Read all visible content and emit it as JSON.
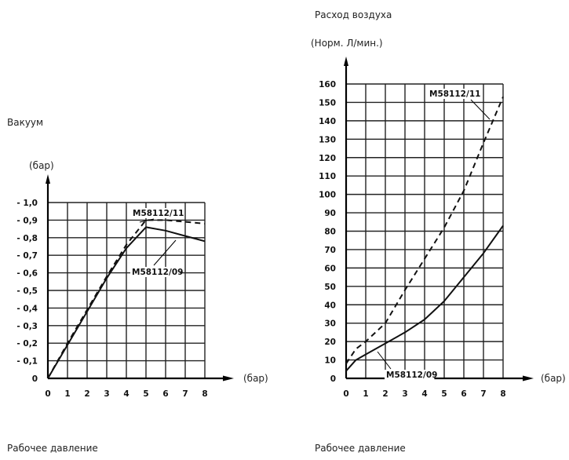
{
  "chart_data": [
    {
      "type": "line",
      "ylabel": "Вакуум",
      "yunit": "(бар)",
      "xlabel": "Рабочее давление",
      "xunit": "(бар)",
      "xlim": [
        0,
        8
      ],
      "ylim": [
        0,
        1.0
      ],
      "grid": true,
      "x_ticks": [
        "0",
        "1",
        "2",
        "3",
        "4",
        "5",
        "6",
        "7",
        "8"
      ],
      "y_ticks": [
        "0",
        "- 0,1",
        "- 0,2",
        "- 0,3",
        "- 0,4",
        "- 0,5",
        "- 0,6",
        "- 0,7",
        "- 0,8",
        "- 0,9",
        "- 1,0"
      ],
      "series": [
        {
          "name": "M58112/11",
          "style": "dashed",
          "color": "#111111",
          "x": [
            0,
            1,
            2,
            3,
            4,
            5,
            6,
            7,
            8
          ],
          "y": [
            0,
            0.2,
            0.39,
            0.58,
            0.76,
            0.9,
            0.9,
            0.89,
            0.88
          ]
        },
        {
          "name": "M58112/09",
          "style": "solid",
          "color": "#111111",
          "x": [
            0,
            1,
            2,
            3,
            4,
            5,
            6,
            7,
            8
          ],
          "y": [
            0,
            0.19,
            0.38,
            0.57,
            0.74,
            0.86,
            0.84,
            0.81,
            0.78
          ]
        }
      ]
    },
    {
      "type": "line",
      "title": "Расход воздуха",
      "ylabel": "(Норм. Л/мин.)",
      "xlabel": "Рабочее давление",
      "xunit": "(бар)",
      "xlim": [
        0,
        8
      ],
      "ylim": [
        0,
        160
      ],
      "grid": true,
      "x_ticks": [
        "0",
        "1",
        "2",
        "3",
        "4",
        "5",
        "6",
        "7",
        "8"
      ],
      "y_ticks": [
        "0",
        "10",
        "20",
        "30",
        "40",
        "50",
        "60",
        "70",
        "80",
        "90",
        "100",
        "110",
        "120",
        "130",
        "140",
        "150",
        "160"
      ],
      "series": [
        {
          "name": "M58112/11",
          "style": "dashed",
          "color": "#111111",
          "x": [
            0,
            0.5,
            1,
            2,
            3,
            4,
            5,
            6,
            7,
            8
          ],
          "y": [
            8,
            16,
            20,
            30,
            48,
            65,
            82,
            102,
            128,
            153
          ]
        },
        {
          "name": "M58112/09",
          "style": "solid",
          "color": "#111111",
          "x": [
            0,
            0.5,
            1,
            2,
            3,
            4,
            5,
            6,
            7,
            8
          ],
          "y": [
            4,
            10,
            13,
            19,
            25,
            32,
            42,
            55,
            68,
            83
          ]
        }
      ]
    }
  ]
}
